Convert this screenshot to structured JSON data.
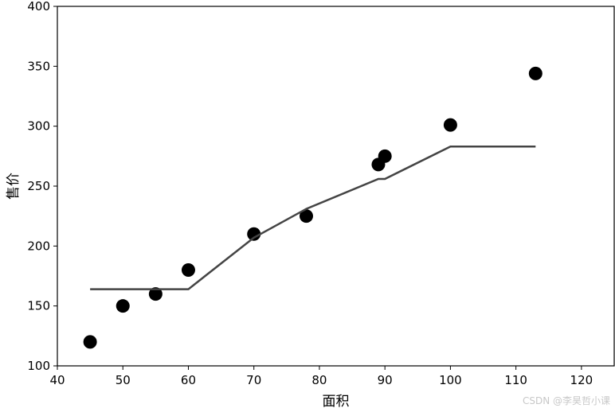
{
  "chart_data": {
    "type": "scatter",
    "xlabel": "面积",
    "ylabel": "售价",
    "xlim": [
      40,
      125
    ],
    "ylim": [
      100,
      400
    ],
    "xticks": [
      40,
      50,
      60,
      70,
      80,
      90,
      100,
      110,
      120
    ],
    "yticks": [
      100,
      150,
      200,
      250,
      300,
      350,
      400
    ],
    "grid": false,
    "series": [
      {
        "kind": "scatter",
        "color": "#000000",
        "x": [
          45,
          50,
          55,
          60,
          70,
          78,
          89,
          90,
          100,
          113
        ],
        "y": [
          120,
          150,
          160,
          180,
          210,
          225,
          268,
          275,
          301,
          344
        ]
      },
      {
        "kind": "line",
        "color": "#444444",
        "x": [
          45,
          60,
          70,
          78,
          89,
          90,
          100,
          113
        ],
        "y": [
          164,
          164,
          207,
          231,
          256,
          256,
          283,
          283
        ]
      }
    ]
  },
  "watermark": "CSDN @李昊哲小课"
}
